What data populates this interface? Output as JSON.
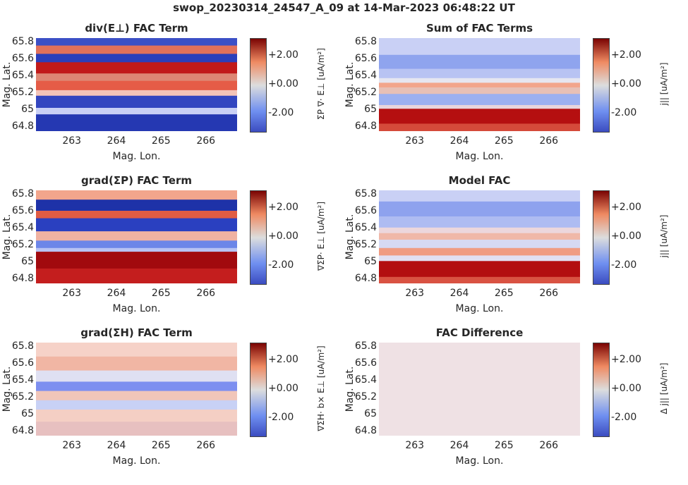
{
  "figure": {
    "title": "swop_20230314_24547_A_09 at 14-Mar-2023 06:48:22 UT"
  },
  "chart_data": [
    {
      "type": "heatmap",
      "title": "div(E⊥) FAC Term",
      "xlabel": "Mag. Lon.",
      "ylabel": "Mag. Lat.",
      "xticks": [
        "263",
        "264",
        "265",
        "266"
      ],
      "yticks": [
        "64.8",
        "65",
        "65.2",
        "65.4",
        "65.6",
        "65.8"
      ],
      "colorbar": {
        "label": "ΣP ∇· E⊥ [uA/m²]",
        "ticks": [
          "-2.00",
          "+0.00",
          "+2.00"
        ],
        "range": [
          -3.2,
          3.2
        ]
      },
      "xlim": [
        262.2,
        266.7
      ],
      "ylim": [
        64.75,
        65.85
      ],
      "colormap": "seismic"
    },
    {
      "type": "heatmap",
      "title": "Sum of FAC Terms",
      "xlabel": "Mag. Lon.",
      "ylabel": "Mag. Lat.",
      "xticks": [
        "263",
        "264",
        "265",
        "266"
      ],
      "yticks": [
        "64.8",
        "65",
        "65.2",
        "65.4",
        "65.6",
        "65.8"
      ],
      "colorbar": {
        "label": "j|| [uA/m²]",
        "ticks": [
          "-2.00",
          "+0.00",
          "+2.00"
        ],
        "range": [
          -3.2,
          3.2
        ]
      },
      "xlim": [
        262.2,
        266.7
      ],
      "ylim": [
        64.75,
        65.85
      ],
      "colormap": "seismic"
    },
    {
      "type": "heatmap",
      "title": "grad(ΣP) FAC Term",
      "xlabel": "Mag. Lon.",
      "ylabel": "Mag. Lat.",
      "xticks": [
        "263",
        "264",
        "265",
        "266"
      ],
      "yticks": [
        "64.8",
        "65",
        "65.2",
        "65.4",
        "65.6",
        "65.8"
      ],
      "colorbar": {
        "label": "∇ΣP· E⊥ [uA/m²]",
        "ticks": [
          "-2.00",
          "+0.00",
          "+2.00"
        ],
        "range": [
          -3.2,
          3.2
        ]
      },
      "xlim": [
        262.2,
        266.7
      ],
      "ylim": [
        64.75,
        65.85
      ],
      "colormap": "seismic"
    },
    {
      "type": "heatmap",
      "title": "Model FAC",
      "xlabel": "Mag. Lon.",
      "ylabel": "Mag. Lat.",
      "xticks": [
        "263",
        "264",
        "265",
        "266"
      ],
      "yticks": [
        "64.8",
        "65",
        "65.2",
        "65.4",
        "65.6",
        "65.8"
      ],
      "colorbar": {
        "label": "j|| [uA/m²]",
        "ticks": [
          "-2.00",
          "+0.00",
          "+2.00"
        ],
        "range": [
          -3.2,
          3.2
        ]
      },
      "xlim": [
        262.2,
        266.7
      ],
      "ylim": [
        64.75,
        65.85
      ],
      "colormap": "seismic"
    },
    {
      "type": "heatmap",
      "title": "grad(ΣH) FAC Term",
      "xlabel": "Mag. Lon.",
      "ylabel": "Mag. Lat.",
      "xticks": [
        "263",
        "264",
        "265",
        "266"
      ],
      "yticks": [
        "64.8",
        "65",
        "65.2",
        "65.4",
        "65.6",
        "65.8"
      ],
      "colorbar": {
        "label": "∇ΣH· b× E⊥ [uA/m²]",
        "ticks": [
          "-2.00",
          "+0.00",
          "+2.00"
        ],
        "range": [
          -3.2,
          3.2
        ]
      },
      "xlim": [
        262.2,
        266.7
      ],
      "ylim": [
        64.75,
        65.85
      ],
      "colormap": "seismic"
    },
    {
      "type": "heatmap",
      "title": "FAC Difference",
      "xlabel": "Mag. Lon.",
      "ylabel": "Mag. Lat.",
      "xticks": [
        "263",
        "264",
        "265",
        "266"
      ],
      "yticks": [
        "64.8",
        "65",
        "65.2",
        "65.4",
        "65.6",
        "65.8"
      ],
      "colorbar": {
        "label": "Δ j|| [uA/m²]",
        "ticks": [
          "-2.00",
          "+0.00",
          "+2.00"
        ],
        "range": [
          -3.2,
          3.2
        ]
      },
      "xlim": [
        262.2,
        266.7
      ],
      "ylim": [
        64.75,
        65.85
      ],
      "colormap": "seismic"
    }
  ]
}
